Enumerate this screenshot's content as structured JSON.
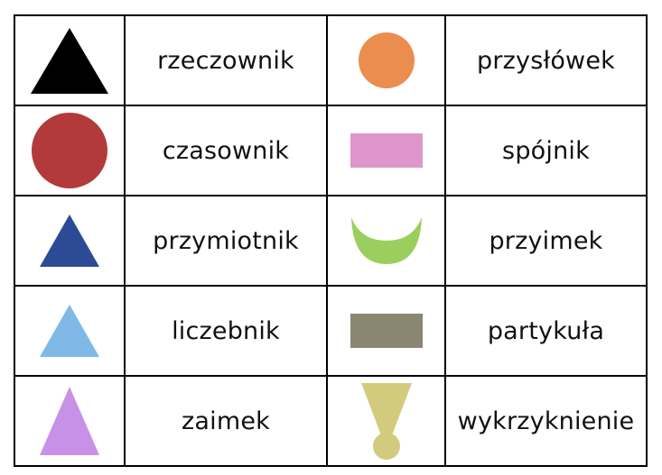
{
  "rows": [
    {
      "left": {
        "symbol": "large-black-triangle",
        "color": "#000000",
        "word": "rzeczownik"
      },
      "right": {
        "symbol": "orange-circle",
        "color": "#ea8d4e",
        "word": "przysłówek"
      }
    },
    {
      "left": {
        "symbol": "large-red-circle",
        "color": "#b23a3a",
        "word": "czasownik"
      },
      "right": {
        "symbol": "pink-rectangle",
        "color": "#de96cc",
        "word": "spójnik"
      }
    },
    {
      "left": {
        "symbol": "dark-blue-triangle",
        "color": "#2c4a96",
        "word": "przymiotnik"
      },
      "right": {
        "symbol": "green-crescent",
        "color": "#9bcf5d",
        "word": "przyimek"
      }
    },
    {
      "left": {
        "symbol": "light-blue-triangle",
        "color": "#7fb9e8",
        "word": "liczebnik"
      },
      "right": {
        "symbol": "grey-brown-rectangle",
        "color": "#8a8672",
        "word": "partykuła"
      }
    },
    {
      "left": {
        "symbol": "purple-triangle",
        "color": "#c891e8",
        "word": "zaimek"
      },
      "right": {
        "symbol": "keyhole-exclamation",
        "color": "#d2cb7e",
        "word": "wykrzyknienie"
      }
    }
  ]
}
